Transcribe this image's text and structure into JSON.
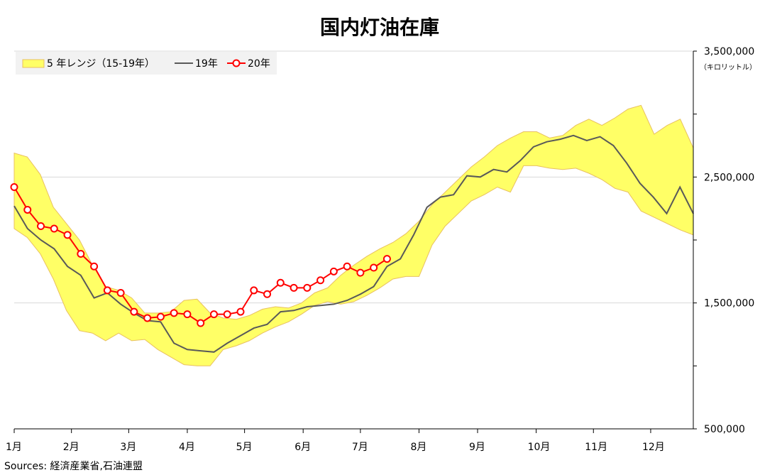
{
  "chart_data": {
    "type": "line",
    "title": "国内灯油在庫",
    "unit_label": "（キロリットル）",
    "source": "Sources: 経済産業省,石油連盟",
    "ylim": [
      500000,
      3500000
    ],
    "y_tick_labels": [
      "3,500,000",
      "2,500,000",
      "1,500,000",
      "500,000"
    ],
    "y_tick_values": [
      3500000,
      2500000,
      1500000,
      500000
    ],
    "x_tick_labels": [
      "1月",
      "2月",
      "3月",
      "4月",
      "5月",
      "6月",
      "7月",
      "8月",
      "9月",
      "10月",
      "11月",
      "12月"
    ],
    "x_range": [
      0,
      51
    ],
    "legend_position": "top-left",
    "colors": {
      "band_fill": "#ffff66",
      "band_edge": "#e8c060",
      "line19": "#595959",
      "line20": "#ff0000",
      "grid": "#d9d9d9",
      "axis": "#000000"
    },
    "legend": {
      "band": "5 年レンジ（15-19年）",
      "line19": "19年",
      "line20": "20年"
    },
    "band_upper": [
      2690000,
      2660000,
      2520000,
      2260000,
      2130000,
      2000000,
      1800000,
      1630000,
      1600000,
      1540000,
      1420000,
      1420000,
      1430000,
      1520000,
      1530000,
      1420000,
      1380000,
      1370000,
      1400000,
      1450000,
      1470000,
      1460000,
      1500000,
      1580000,
      1620000,
      1720000,
      1800000,
      1870000,
      1930000,
      1980000,
      2050000,
      2150000,
      2280000,
      2380000,
      2480000,
      2580000,
      2660000,
      2750000,
      2810000,
      2860000,
      2860000,
      2810000,
      2830000,
      2910000,
      2960000,
      2910000,
      2970000,
      3040000,
      3070000,
      2840000,
      2910000,
      2960000,
      2730000
    ],
    "band_lower": [
      2090000,
      2020000,
      1890000,
      1690000,
      1440000,
      1280000,
      1260000,
      1200000,
      1260000,
      1200000,
      1210000,
      1130000,
      1070000,
      1010000,
      1000000,
      1000000,
      1130000,
      1160000,
      1200000,
      1260000,
      1310000,
      1350000,
      1410000,
      1480000,
      1510000,
      1490000,
      1510000,
      1560000,
      1620000,
      1690000,
      1710000,
      1710000,
      1960000,
      2110000,
      2210000,
      2310000,
      2360000,
      2420000,
      2380000,
      2590000,
      2590000,
      2570000,
      2560000,
      2570000,
      2530000,
      2480000,
      2410000,
      2380000,
      2230000,
      2180000,
      2130000,
      2080000,
      2040000
    ],
    "series": [
      {
        "name": "19年",
        "values": [
          2270000,
          2090000,
          2000000,
          1930000,
          1790000,
          1720000,
          1540000,
          1580000,
          1490000,
          1420000,
          1360000,
          1350000,
          1180000,
          1130000,
          1120000,
          1110000,
          1180000,
          1240000,
          1300000,
          1330000,
          1430000,
          1440000,
          1470000,
          1480000,
          1490000,
          1520000,
          1570000,
          1630000,
          1790000,
          1850000,
          2040000,
          2260000,
          2340000,
          2360000,
          2510000,
          2500000,
          2560000,
          2540000,
          2630000,
          2740000,
          2780000,
          2800000,
          2830000,
          2790000,
          2820000,
          2750000,
          2610000,
          2450000,
          2340000,
          2210000,
          2420000,
          2210000
        ]
      },
      {
        "name": "20年",
        "values": [
          2420000,
          2240000,
          2110000,
          2090000,
          2040000,
          1890000,
          1790000,
          1600000,
          1580000,
          1430000,
          1380000,
          1390000,
          1420000,
          1410000,
          1340000,
          1410000,
          1410000,
          1430000,
          1600000,
          1570000,
          1660000,
          1620000,
          1620000,
          1680000,
          1750000,
          1790000,
          1740000,
          1780000,
          1850000
        ]
      }
    ]
  }
}
